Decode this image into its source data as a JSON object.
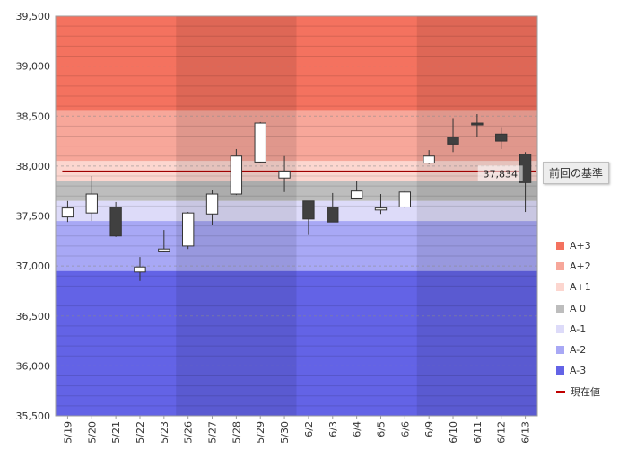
{
  "chart_data": {
    "type": "candlestick",
    "ylim": [
      35500,
      39500
    ],
    "yticks": [
      "35,500",
      "36,000",
      "36,500",
      "37,000",
      "37,500",
      "38,000",
      "38,500",
      "39,000",
      "39,500"
    ],
    "ytick_values": [
      35500,
      36000,
      36500,
      37000,
      37500,
      38000,
      38500,
      39000,
      39500
    ],
    "categories": [
      "5/19",
      "5/20",
      "5/21",
      "5/22",
      "5/23",
      "5/26",
      "5/27",
      "5/28",
      "5/29",
      "5/30",
      "6/2",
      "6/3",
      "6/4",
      "6/5",
      "6/6",
      "6/9",
      "6/10",
      "6/11",
      "6/12",
      "6/13"
    ],
    "candles": [
      {
        "open": 37490,
        "high": 37650,
        "low": 37440,
        "close": 37580
      },
      {
        "open": 37530,
        "high": 37900,
        "low": 37450,
        "close": 37720
      },
      {
        "open": 37590,
        "high": 37640,
        "low": 37290,
        "close": 37300
      },
      {
        "open": 36940,
        "high": 37090,
        "low": 36850,
        "close": 36990
      },
      {
        "open": 37150,
        "high": 37360,
        "low": 37140,
        "close": 37170
      },
      {
        "open": 37200,
        "high": 37540,
        "low": 37170,
        "close": 37530
      },
      {
        "open": 37520,
        "high": 37760,
        "low": 37410,
        "close": 37720
      },
      {
        "open": 37720,
        "high": 38170,
        "low": 37710,
        "close": 38100
      },
      {
        "open": 38040,
        "high": 38440,
        "low": 38030,
        "close": 38430
      },
      {
        "open": 37880,
        "high": 38100,
        "low": 37740,
        "close": 37950
      },
      {
        "open": 37650,
        "high": 37650,
        "low": 37310,
        "close": 37470
      },
      {
        "open": 37590,
        "high": 37730,
        "low": 37440,
        "close": 37440
      },
      {
        "open": 37680,
        "high": 37850,
        "low": 37670,
        "close": 37750
      },
      {
        "open": 37560,
        "high": 37720,
        "low": 37520,
        "close": 37580
      },
      {
        "open": 37590,
        "high": 37750,
        "low": 37580,
        "close": 37740
      },
      {
        "open": 38030,
        "high": 38160,
        "low": 38020,
        "close": 38100
      },
      {
        "open": 38290,
        "high": 38480,
        "low": 38140,
        "close": 38220
      },
      {
        "open": 38430,
        "high": 38520,
        "low": 38290,
        "close": 38420
      },
      {
        "open": 38320,
        "high": 38390,
        "low": 38170,
        "close": 38250
      },
      {
        "open": 38120,
        "high": 38140,
        "low": 37540,
        "close": 37834
      }
    ],
    "zones": [
      {
        "name": "A+3",
        "from": 38550,
        "to": 39500,
        "color": "#f4725f"
      },
      {
        "name": "A+2",
        "from": 38050,
        "to": 38550,
        "color": "#f7a79a"
      },
      {
        "name": "A+1",
        "from": 37850,
        "to": 38050,
        "color": "#fcd6cf"
      },
      {
        "name": "A 0",
        "from": 37650,
        "to": 37850,
        "color": "#bdbdbd"
      },
      {
        "name": "A-1",
        "from": 37450,
        "to": 37650,
        "color": "#dddbf9"
      },
      {
        "name": "A-2",
        "from": 36950,
        "to": 37450,
        "color": "#a8a8f5"
      },
      {
        "name": "A-3",
        "from": 35500,
        "to": 36950,
        "color": "#6363e6"
      }
    ],
    "weekly_shading_groups": [
      [
        0,
        4
      ],
      [
        5,
        9
      ],
      [
        10,
        14
      ],
      [
        15,
        19
      ]
    ],
    "current_value": 37834,
    "current_value_label": "37,834",
    "previous_base": 37950,
    "previous_base_label": "前回の基準",
    "legend": [
      {
        "label": "A+3",
        "color": "#f4725f"
      },
      {
        "label": "A+2",
        "color": "#f7a79a"
      },
      {
        "label": "A+1",
        "color": "#fcd6cf"
      },
      {
        "label": "A 0",
        "color": "#bdbdbd"
      },
      {
        "label": "A-1",
        "color": "#dddbf9"
      },
      {
        "label": "A-2",
        "color": "#a8a8f5"
      },
      {
        "label": "A-3",
        "color": "#6363e6"
      },
      {
        "label": "現在値",
        "color": "#c00000"
      }
    ],
    "grid": true
  }
}
